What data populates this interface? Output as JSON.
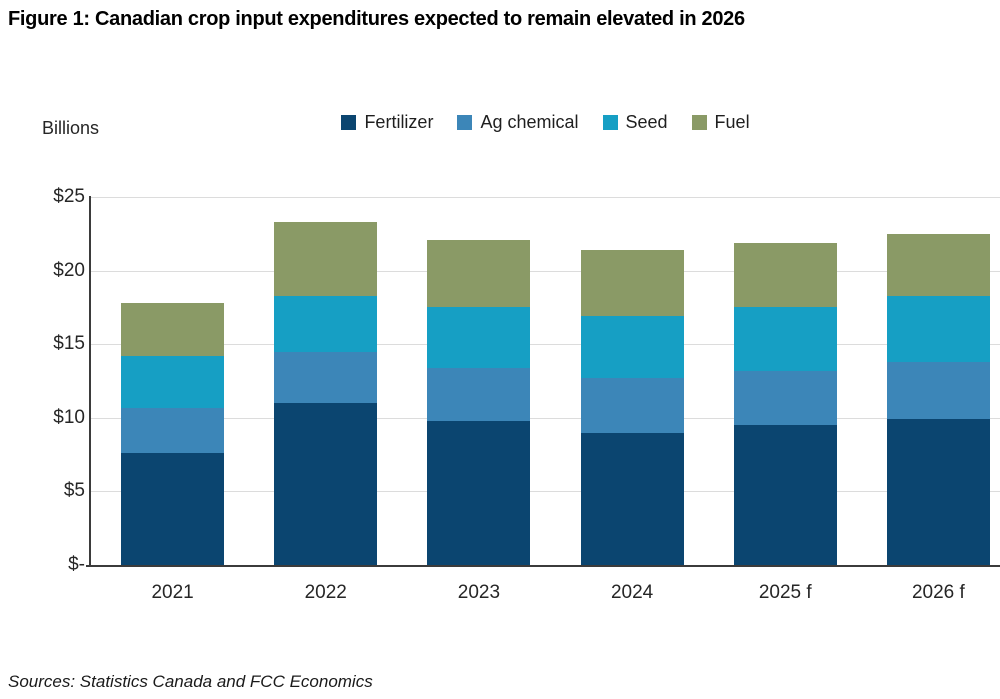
{
  "figure": {
    "title": "Figure 1: Canadian crop input expenditures expected to remain elevated in 2026",
    "source": "Sources: Statistics Canada and FCC Economics"
  },
  "chart_data": {
    "type": "bar",
    "stacked": true,
    "title": "Figure 1: Canadian crop input expenditures expected to remain elevated in 2026",
    "ylabel": "Billions",
    "xlabel": "",
    "categories": [
      "2021",
      "2022",
      "2023",
      "2024",
      "2025 f",
      "2026 f"
    ],
    "series": [
      {
        "name": "Fertilizer",
        "color": "#0b4570",
        "values": [
          7.6,
          11.0,
          9.8,
          9.0,
          9.5,
          9.9
        ]
      },
      {
        "name": "Ag chemical",
        "color": "#3c86b8",
        "values": [
          3.1,
          3.5,
          3.6,
          3.7,
          3.7,
          3.9
        ]
      },
      {
        "name": "Seed",
        "color": "#169fc4",
        "values": [
          3.5,
          3.8,
          4.1,
          4.2,
          4.3,
          4.5
        ]
      },
      {
        "name": "Fuel",
        "color": "#8a9a66",
        "values": [
          3.6,
          5.0,
          4.6,
          4.5,
          4.4,
          4.2
        ]
      }
    ],
    "totals": [
      17.8,
      23.3,
      22.1,
      21.4,
      21.9,
      22.5
    ],
    "ylim": [
      0,
      25
    ],
    "y_ticks": [
      {
        "value": 25,
        "label": "$25"
      },
      {
        "value": 20,
        "label": "$20"
      },
      {
        "value": 15,
        "label": "$15"
      },
      {
        "value": 10,
        "label": "$10"
      },
      {
        "value": 5,
        "label": "$5"
      },
      {
        "value": 0,
        "label": "$-"
      }
    ],
    "grid": true,
    "legend_position": "top"
  },
  "colors": {
    "background": "#ffffff",
    "gridline": "#dcdcdc",
    "axis_line": "#3b3b3b",
    "text": "#262626"
  }
}
